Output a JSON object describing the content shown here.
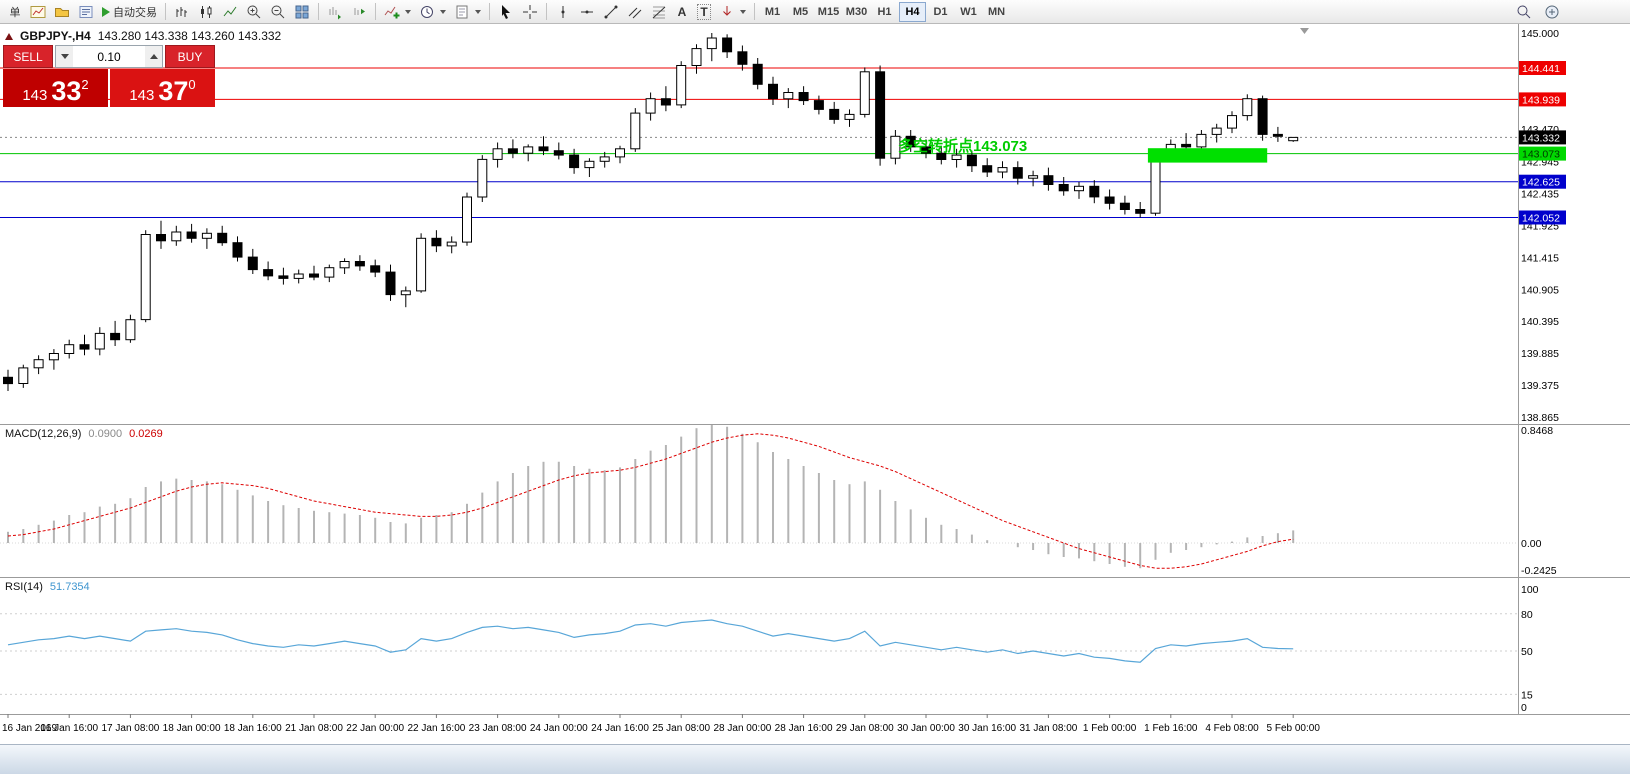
{
  "toolbar": {
    "new_order_label": "单",
    "autotrade_label": "自动交易",
    "text_tool_glyph": "A",
    "label_tool_glyph": "T",
    "timeframes": [
      "M1",
      "M5",
      "M15",
      "M30",
      "H1",
      "H4",
      "D1",
      "W1",
      "MN"
    ],
    "active_timeframe": "H4"
  },
  "symbol_bar": {
    "symbol": "GBPJPY-,H4",
    "ohlc": "143.280 143.338 143.260 143.332"
  },
  "trade_panel": {
    "sell_label": "SELL",
    "buy_label": "BUY",
    "volume": "0.10",
    "sell_price_int": "143",
    "sell_price_big": "33",
    "sell_price_sup": "2",
    "buy_price_int": "143",
    "buy_price_big": "37",
    "buy_price_sup": "0"
  },
  "annotation": {
    "text": "多空转折点143.073",
    "color": "#00cc00"
  },
  "chart_data": {
    "type": "candlestick",
    "symbol": "GBPJPY-",
    "timeframe": "H4",
    "price_range": {
      "min": 138.865,
      "max": 145.0
    },
    "price_ticks": [
      {
        "value": 145.0,
        "label": "145.000"
      },
      {
        "value": 143.47,
        "label": "143.470"
      },
      {
        "value": 142.945,
        "label": "142.945"
      },
      {
        "value": 142.435,
        "label": "142.435"
      },
      {
        "value": 141.925,
        "label": "141.925"
      },
      {
        "value": 141.415,
        "label": "141.415"
      },
      {
        "value": 140.905,
        "label": "140.905"
      },
      {
        "value": 140.395,
        "label": "140.395"
      },
      {
        "value": 139.885,
        "label": "139.885"
      },
      {
        "value": 139.375,
        "label": "139.375"
      },
      {
        "value": 138.865,
        "label": "138.865"
      }
    ],
    "levels": [
      {
        "price": 144.441,
        "label": "144.441",
        "line_color": "#ee0000",
        "tag_bg": "#ee0000",
        "tag_fg": "#ffffff",
        "style": "solid"
      },
      {
        "price": 143.939,
        "label": "143.939",
        "line_color": "#ee0000",
        "tag_bg": "#ee0000",
        "tag_fg": "#ffffff",
        "style": "solid"
      },
      {
        "price": 143.332,
        "label": "143.332",
        "line_color": "#888888",
        "tag_bg": "#000000",
        "tag_fg": "#ffffff",
        "style": "dotted"
      },
      {
        "price": 143.073,
        "label": "143.073",
        "line_color": "#00c400",
        "tag_bg": "#00d800",
        "tag_fg": "#003300",
        "style": "solid"
      },
      {
        "price": 142.625,
        "label": "142.625",
        "line_color": "#0000cc",
        "tag_bg": "#0000cc",
        "tag_fg": "#ffffff",
        "style": "solid"
      },
      {
        "price": 142.052,
        "label": "142.052",
        "line_color": "#0000cc",
        "tag_bg": "#0000cc",
        "tag_fg": "#ffffff",
        "style": "solid"
      }
    ],
    "highlight_rect": {
      "start_index": 74.5,
      "end_index": 82.3,
      "top_price": 143.16,
      "bottom_price": 142.93,
      "color": "#00e000"
    },
    "candles": [
      [
        139.5,
        139.62,
        139.28,
        139.4
      ],
      [
        139.4,
        139.7,
        139.33,
        139.65
      ],
      [
        139.65,
        139.85,
        139.55,
        139.78
      ],
      [
        139.78,
        139.95,
        139.62,
        139.88
      ],
      [
        139.88,
        140.1,
        139.8,
        140.02
      ],
      [
        140.02,
        140.18,
        139.85,
        139.95
      ],
      [
        139.95,
        140.3,
        139.85,
        140.2
      ],
      [
        140.2,
        140.4,
        140.0,
        140.1
      ],
      [
        140.1,
        140.5,
        140.05,
        140.42
      ],
      [
        140.42,
        141.85,
        140.38,
        141.78
      ],
      [
        141.78,
        142.0,
        141.55,
        141.68
      ],
      [
        141.68,
        141.92,
        141.6,
        141.82
      ],
      [
        141.82,
        141.95,
        141.65,
        141.72
      ],
      [
        141.72,
        141.88,
        141.55,
        141.8
      ],
      [
        141.8,
        141.92,
        141.6,
        141.65
      ],
      [
        141.65,
        141.75,
        141.35,
        141.42
      ],
      [
        141.42,
        141.55,
        141.15,
        141.22
      ],
      [
        141.22,
        141.35,
        141.05,
        141.12
      ],
      [
        141.12,
        141.25,
        140.98,
        141.08
      ],
      [
        141.08,
        141.22,
        141.0,
        141.15
      ],
      [
        141.15,
        141.28,
        141.05,
        141.1
      ],
      [
        141.1,
        141.3,
        141.02,
        141.25
      ],
      [
        141.25,
        141.4,
        141.15,
        141.35
      ],
      [
        141.35,
        141.45,
        141.2,
        141.28
      ],
      [
        141.28,
        141.38,
        141.1,
        141.18
      ],
      [
        141.18,
        141.3,
        140.72,
        140.82
      ],
      [
        140.82,
        140.95,
        140.62,
        140.88
      ],
      [
        140.88,
        141.8,
        140.85,
        141.72
      ],
      [
        141.72,
        141.85,
        141.5,
        141.6
      ],
      [
        141.6,
        141.75,
        141.48,
        141.66
      ],
      [
        141.66,
        142.45,
        141.6,
        142.38
      ],
      [
        142.38,
        143.05,
        142.3,
        142.98
      ],
      [
        142.98,
        143.25,
        142.85,
        143.15
      ],
      [
        143.15,
        143.3,
        143.0,
        143.08
      ],
      [
        143.08,
        143.22,
        142.95,
        143.18
      ],
      [
        143.18,
        143.35,
        143.05,
        143.12
      ],
      [
        143.12,
        143.25,
        142.98,
        143.05
      ],
      [
        143.05,
        143.15,
        142.75,
        142.85
      ],
      [
        142.85,
        143.0,
        142.7,
        142.95
      ],
      [
        142.95,
        143.1,
        142.85,
        143.02
      ],
      [
        143.02,
        143.2,
        142.92,
        143.15
      ],
      [
        143.15,
        143.8,
        143.1,
        143.72
      ],
      [
        143.72,
        144.05,
        143.6,
        143.95
      ],
      [
        143.95,
        144.15,
        143.75,
        143.85
      ],
      [
        143.85,
        144.55,
        143.8,
        144.48
      ],
      [
        144.48,
        144.82,
        144.35,
        144.75
      ],
      [
        144.75,
        145.0,
        144.55,
        144.92
      ],
      [
        144.92,
        144.98,
        144.6,
        144.7
      ],
      [
        144.7,
        144.8,
        144.4,
        144.5
      ],
      [
        144.5,
        144.6,
        144.1,
        144.18
      ],
      [
        144.18,
        144.3,
        143.85,
        143.95
      ],
      [
        143.95,
        144.12,
        143.8,
        144.05
      ],
      [
        144.05,
        144.15,
        143.85,
        143.92
      ],
      [
        143.92,
        144.0,
        143.7,
        143.78
      ],
      [
        143.78,
        143.9,
        143.55,
        143.62
      ],
      [
        143.62,
        143.78,
        143.5,
        143.7
      ],
      [
        143.7,
        144.45,
        143.65,
        144.38
      ],
      [
        144.38,
        144.48,
        142.88,
        143.0
      ],
      [
        143.0,
        143.45,
        142.9,
        143.35
      ],
      [
        143.35,
        143.45,
        143.1,
        143.18
      ],
      [
        143.18,
        143.3,
        143.0,
        143.08
      ],
      [
        143.08,
        143.2,
        142.9,
        142.98
      ],
      [
        142.98,
        143.15,
        142.85,
        143.05
      ],
      [
        143.05,
        143.12,
        142.78,
        142.88
      ],
      [
        142.88,
        143.0,
        142.7,
        142.78
      ],
      [
        142.78,
        142.95,
        142.68,
        142.85
      ],
      [
        142.85,
        142.95,
        142.58,
        142.68
      ],
      [
        142.68,
        142.8,
        142.55,
        142.72
      ],
      [
        142.72,
        142.85,
        142.48,
        142.58
      ],
      [
        142.58,
        142.7,
        142.4,
        142.48
      ],
      [
        142.48,
        142.62,
        142.35,
        142.55
      ],
      [
        142.55,
        142.65,
        142.28,
        142.38
      ],
      [
        142.38,
        142.5,
        142.18,
        142.28
      ],
      [
        142.28,
        142.4,
        142.1,
        142.18
      ],
      [
        142.18,
        142.3,
        142.05,
        142.12
      ],
      [
        142.12,
        143.1,
        142.08,
        143.02
      ],
      [
        143.02,
        143.3,
        142.95,
        143.22
      ],
      [
        143.22,
        143.4,
        143.1,
        143.18
      ],
      [
        143.18,
        143.45,
        143.1,
        143.38
      ],
      [
        143.38,
        143.55,
        143.25,
        143.48
      ],
      [
        143.48,
        143.75,
        143.4,
        143.68
      ],
      [
        143.68,
        144.02,
        143.6,
        143.95
      ],
      [
        143.95,
        144.0,
        143.28,
        143.38
      ],
      [
        143.38,
        143.5,
        143.26,
        143.35
      ],
      [
        143.28,
        143.338,
        143.26,
        143.332
      ]
    ],
    "time_ticks": [
      {
        "index": 0,
        "label": "16 Jan 2019"
      },
      {
        "index": 4,
        "label": "16 Jan 16:00"
      },
      {
        "index": 8,
        "label": "17 Jan 08:00"
      },
      {
        "index": 12,
        "label": "18 Jan 00:00"
      },
      {
        "index": 16,
        "label": "18 Jan 16:00"
      },
      {
        "index": 20,
        "label": "21 Jan 08:00"
      },
      {
        "index": 24,
        "label": "22 Jan 00:00"
      },
      {
        "index": 28,
        "label": "22 Jan 16:00"
      },
      {
        "index": 32,
        "label": "23 Jan 08:00"
      },
      {
        "index": 36,
        "label": "24 Jan 00:00"
      },
      {
        "index": 40,
        "label": "24 Jan 16:00"
      },
      {
        "index": 44,
        "label": "25 Jan 08:00"
      },
      {
        "index": 48,
        "label": "28 Jan 00:00"
      },
      {
        "index": 52,
        "label": "28 Jan 16:00"
      },
      {
        "index": 56,
        "label": "29 Jan 08:00"
      },
      {
        "index": 60,
        "label": "30 Jan 00:00"
      },
      {
        "index": 64,
        "label": "30 Jan 16:00"
      },
      {
        "index": 68,
        "label": "31 Jan 08:00"
      },
      {
        "index": 72,
        "label": "1 Feb 00:00"
      },
      {
        "index": 76,
        "label": "1 Feb 16:00"
      },
      {
        "index": 80,
        "label": "4 Feb 08:00"
      },
      {
        "index": 84,
        "label": "5 Feb 00:00"
      }
    ],
    "macd": {
      "name": "MACD(12,26,9)",
      "main_value": "0.0900",
      "signal_value": "0.0269",
      "axis": [
        {
          "value": 0.8468,
          "label": "0.8468"
        },
        {
          "value": 0,
          "label": "0.00"
        },
        {
          "value": -0.2425,
          "label": "-0.2425"
        }
      ],
      "hist": [
        0.08,
        0.1,
        0.13,
        0.16,
        0.2,
        0.22,
        0.26,
        0.28,
        0.32,
        0.4,
        0.44,
        0.46,
        0.45,
        0.44,
        0.42,
        0.38,
        0.34,
        0.3,
        0.27,
        0.25,
        0.23,
        0.22,
        0.21,
        0.2,
        0.18,
        0.15,
        0.14,
        0.18,
        0.2,
        0.22,
        0.28,
        0.36,
        0.44,
        0.5,
        0.55,
        0.58,
        0.58,
        0.55,
        0.53,
        0.52,
        0.54,
        0.6,
        0.66,
        0.7,
        0.76,
        0.82,
        0.8468,
        0.83,
        0.78,
        0.72,
        0.65,
        0.6,
        0.55,
        0.5,
        0.45,
        0.42,
        0.44,
        0.38,
        0.3,
        0.24,
        0.18,
        0.13,
        0.1,
        0.06,
        0.02,
        0.0,
        -0.03,
        -0.05,
        -0.08,
        -0.1,
        -0.11,
        -0.13,
        -0.15,
        -0.17,
        -0.18,
        -0.12,
        -0.07,
        -0.05,
        -0.03,
        -0.01,
        0.01,
        0.04,
        0.05,
        0.07,
        0.09
      ],
      "signal": [
        0.05,
        0.06,
        0.08,
        0.1,
        0.13,
        0.16,
        0.19,
        0.22,
        0.25,
        0.29,
        0.33,
        0.37,
        0.4,
        0.42,
        0.43,
        0.42,
        0.41,
        0.39,
        0.36,
        0.33,
        0.3,
        0.28,
        0.26,
        0.24,
        0.22,
        0.21,
        0.2,
        0.19,
        0.19,
        0.2,
        0.22,
        0.25,
        0.29,
        0.33,
        0.37,
        0.41,
        0.45,
        0.48,
        0.5,
        0.51,
        0.52,
        0.54,
        0.57,
        0.6,
        0.64,
        0.68,
        0.72,
        0.75,
        0.77,
        0.78,
        0.77,
        0.75,
        0.72,
        0.69,
        0.65,
        0.61,
        0.58,
        0.55,
        0.51,
        0.46,
        0.41,
        0.36,
        0.31,
        0.26,
        0.21,
        0.16,
        0.12,
        0.08,
        0.04,
        0.0,
        -0.04,
        -0.07,
        -0.1,
        -0.13,
        -0.16,
        -0.18,
        -0.18,
        -0.17,
        -0.15,
        -0.12,
        -0.09,
        -0.06,
        -0.02,
        0.01,
        0.0269
      ]
    },
    "rsi": {
      "name": "RSI(14)",
      "value": "51.7354",
      "axis": [
        {
          "value": 100,
          "label": "100"
        },
        {
          "value": 80,
          "label": "80"
        },
        {
          "value": 50,
          "label": "50"
        },
        {
          "value": 15,
          "label": "15"
        },
        {
          "value": 0,
          "label": "0"
        }
      ],
      "levels": [
        80,
        50,
        15
      ],
      "series": [
        55,
        57,
        59,
        60,
        62,
        60,
        62,
        60,
        58,
        66,
        67,
        68,
        66,
        65,
        63,
        59,
        56,
        54,
        53,
        55,
        54,
        56,
        58,
        56,
        54,
        49,
        51,
        60,
        58,
        60,
        65,
        69,
        70,
        68,
        69,
        67,
        65,
        61,
        63,
        64,
        66,
        71,
        72,
        70,
        73,
        74,
        75,
        72,
        70,
        66,
        62,
        64,
        62,
        60,
        58,
        60,
        66,
        54,
        57,
        55,
        53,
        51,
        53,
        51,
        49,
        51,
        48,
        50,
        48,
        46,
        48,
        45,
        44,
        42,
        41,
        52,
        55,
        54,
        56,
        57,
        58,
        60,
        53,
        52,
        51.74
      ]
    }
  }
}
